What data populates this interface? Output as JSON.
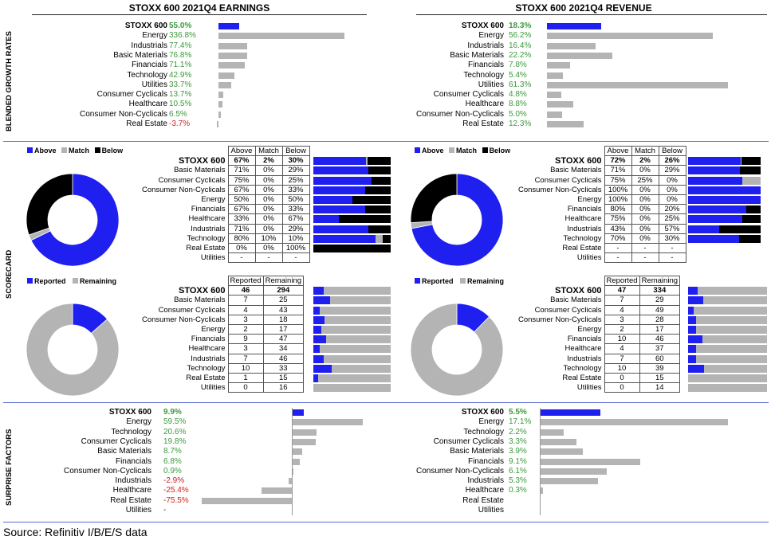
{
  "colors": {
    "blue": "#1f1ff0",
    "grey": "#b4b4b4",
    "black": "#000000",
    "pos": "#3c9a3c",
    "neg": "#d22020"
  },
  "headers": {
    "earnings": "STOXX 600 2021Q4 EARNINGS",
    "revenue": "STOXX 600 2021Q4 REVENUE"
  },
  "sections": {
    "growth": "BLENDED GROWTH RATES",
    "scorecard": "SCORECARD",
    "surprise": "SURPRISE FACTORS"
  },
  "legends": {
    "above": "Above",
    "match": "Match",
    "below": "Below",
    "reported": "Reported",
    "remaining": "Remaining"
  },
  "table_headers": {
    "above": "Above",
    "match": "Match",
    "below": "Below",
    "reported": "Reported",
    "remaining": "Remaining"
  },
  "source": "Source: Refinitiv I/B/E/S data",
  "chart_data": [
    {
      "id": "earn_growth",
      "type": "bar",
      "title": "STOXX 600 2021Q4 EARNINGS",
      "subtitle": "BLENDED GROWTH RATES",
      "categories": [
        "STOXX 600",
        "Energy",
        "Industrials",
        "Basic Materials",
        "Financials",
        "Technology",
        "Utilities",
        "Consumer Cyclicals",
        "Healthcare",
        "Consumer Non-Cyclicals",
        "Real Estate"
      ],
      "values": [
        55.0,
        336.8,
        77.4,
        76.8,
        71.1,
        42.9,
        33.7,
        13.7,
        10.5,
        6.5,
        -3.7
      ],
      "labels": [
        "55.0%",
        "336.8%",
        "77.4%",
        "76.8%",
        "71.1%",
        "42.9%",
        "33.7%",
        "13.7%",
        "10.5%",
        "6.5%",
        "-3.7%"
      ]
    },
    {
      "id": "rev_growth",
      "type": "bar",
      "title": "STOXX 600 2021Q4 REVENUE",
      "subtitle": "BLENDED GROWTH RATES",
      "categories": [
        "STOXX 600",
        "Energy",
        "Industrials",
        "Basic Materials",
        "Financials",
        "Technology",
        "Utilities",
        "Consumer Cyclicals",
        "Healthcare",
        "Consumer Non-Cyclicals",
        "Real Estate"
      ],
      "values": [
        18.3,
        56.2,
        16.4,
        22.2,
        7.8,
        5.4,
        61.3,
        4.8,
        8.8,
        5.0,
        12.3
      ],
      "labels": [
        "18.3%",
        "56.2%",
        "16.4%",
        "22.2%",
        "7.8%",
        "5.4%",
        "61.3%",
        "4.8%",
        "8.8%",
        "5.0%",
        "12.3%"
      ]
    },
    {
      "id": "earn_score",
      "type": "table",
      "subtitle": "SCORECARD",
      "rows": [
        {
          "name": "STOXX 600",
          "above": "67%",
          "match": "2%",
          "below": "30%",
          "a": 67,
          "m": 2,
          "b": 30
        },
        {
          "name": "Basic Materials",
          "above": "71%",
          "match": "0%",
          "below": "29%",
          "a": 71,
          "m": 0,
          "b": 29
        },
        {
          "name": "Consumer Cyclicals",
          "above": "75%",
          "match": "0%",
          "below": "25%",
          "a": 75,
          "m": 0,
          "b": 25
        },
        {
          "name": "Consumer Non-Cyclicals",
          "above": "67%",
          "match": "0%",
          "below": "33%",
          "a": 67,
          "m": 0,
          "b": 33
        },
        {
          "name": "Energy",
          "above": "50%",
          "match": "0%",
          "below": "50%",
          "a": 50,
          "m": 0,
          "b": 50
        },
        {
          "name": "Financials",
          "above": "67%",
          "match": "0%",
          "below": "33%",
          "a": 67,
          "m": 0,
          "b": 33
        },
        {
          "name": "Healthcare",
          "above": "33%",
          "match": "0%",
          "below": "67%",
          "a": 33,
          "m": 0,
          "b": 67
        },
        {
          "name": "Industrials",
          "above": "71%",
          "match": "0%",
          "below": "29%",
          "a": 71,
          "m": 0,
          "b": 29
        },
        {
          "name": "Technology",
          "above": "80%",
          "match": "10%",
          "below": "10%",
          "a": 80,
          "m": 10,
          "b": 10
        },
        {
          "name": "Real Estate",
          "above": "0%",
          "match": "0%",
          "below": "100%",
          "a": 0,
          "m": 0,
          "b": 100
        },
        {
          "name": "Utilities",
          "above": "-",
          "match": "-",
          "below": "-",
          "a": 0,
          "m": 0,
          "b": 0
        }
      ],
      "donut": {
        "above": 67,
        "match": 2,
        "below": 30
      }
    },
    {
      "id": "rev_score",
      "type": "table",
      "subtitle": "SCORECARD",
      "rows": [
        {
          "name": "STOXX 600",
          "above": "72%",
          "match": "2%",
          "below": "26%",
          "a": 72,
          "m": 2,
          "b": 26
        },
        {
          "name": "Basic Materials",
          "above": "71%",
          "match": "0%",
          "below": "29%",
          "a": 71,
          "m": 0,
          "b": 29
        },
        {
          "name": "Consumer Cyclicals",
          "above": "75%",
          "match": "25%",
          "below": "0%",
          "a": 75,
          "m": 25,
          "b": 0
        },
        {
          "name": "Consumer Non-Cyclicals",
          "above": "100%",
          "match": "0%",
          "below": "0%",
          "a": 100,
          "m": 0,
          "b": 0
        },
        {
          "name": "Energy",
          "above": "100%",
          "match": "0%",
          "below": "0%",
          "a": 100,
          "m": 0,
          "b": 0
        },
        {
          "name": "Financials",
          "above": "80%",
          "match": "0%",
          "below": "20%",
          "a": 80,
          "m": 0,
          "b": 20
        },
        {
          "name": "Healthcare",
          "above": "75%",
          "match": "0%",
          "below": "25%",
          "a": 75,
          "m": 0,
          "b": 25
        },
        {
          "name": "Industrials",
          "above": "43%",
          "match": "0%",
          "below": "57%",
          "a": 43,
          "m": 0,
          "b": 57
        },
        {
          "name": "Technology",
          "above": "70%",
          "match": "0%",
          "below": "30%",
          "a": 70,
          "m": 0,
          "b": 30
        },
        {
          "name": "Real Estate",
          "above": "-",
          "match": "-",
          "below": "-",
          "a": 0,
          "m": 0,
          "b": 0
        },
        {
          "name": "Utilities",
          "above": "-",
          "match": "-",
          "below": "-",
          "a": 0,
          "m": 0,
          "b": 0
        }
      ],
      "donut": {
        "above": 72,
        "match": 2,
        "below": 26
      }
    },
    {
      "id": "earn_rep",
      "type": "table",
      "subtitle": "SCORECARD",
      "rows": [
        {
          "name": "STOXX 600",
          "reported": "46",
          "remaining": "294",
          "r": 46,
          "q": 294
        },
        {
          "name": "Basic Materials",
          "reported": "7",
          "remaining": "25",
          "r": 7,
          "q": 25
        },
        {
          "name": "Consumer Cyclicals",
          "reported": "4",
          "remaining": "43",
          "r": 4,
          "q": 43
        },
        {
          "name": "Consumer Non-Cyclicals",
          "reported": "3",
          "remaining": "18",
          "r": 3,
          "q": 18
        },
        {
          "name": "Energy",
          "reported": "2",
          "remaining": "17",
          "r": 2,
          "q": 17
        },
        {
          "name": "Financials",
          "reported": "9",
          "remaining": "47",
          "r": 9,
          "q": 47
        },
        {
          "name": "Healthcare",
          "reported": "3",
          "remaining": "34",
          "r": 3,
          "q": 34
        },
        {
          "name": "Industrials",
          "reported": "7",
          "remaining": "46",
          "r": 7,
          "q": 46
        },
        {
          "name": "Technology",
          "reported": "10",
          "remaining": "33",
          "r": 10,
          "q": 33
        },
        {
          "name": "Real Estate",
          "reported": "1",
          "remaining": "15",
          "r": 1,
          "q": 15
        },
        {
          "name": "Utilities",
          "reported": "0",
          "remaining": "16",
          "r": 0,
          "q": 16
        }
      ]
    },
    {
      "id": "rev_rep",
      "type": "table",
      "subtitle": "SCORECARD",
      "rows": [
        {
          "name": "STOXX 600",
          "reported": "47",
          "remaining": "334",
          "r": 47,
          "q": 334
        },
        {
          "name": "Basic Materials",
          "reported": "7",
          "remaining": "29",
          "r": 7,
          "q": 29
        },
        {
          "name": "Consumer Cyclicals",
          "reported": "4",
          "remaining": "49",
          "r": 4,
          "q": 49
        },
        {
          "name": "Consumer Non-Cyclicals",
          "reported": "3",
          "remaining": "28",
          "r": 3,
          "q": 28
        },
        {
          "name": "Energy",
          "reported": "2",
          "remaining": "17",
          "r": 2,
          "q": 17
        },
        {
          "name": "Financials",
          "reported": "10",
          "remaining": "46",
          "r": 10,
          "q": 46
        },
        {
          "name": "Healthcare",
          "reported": "4",
          "remaining": "37",
          "r": 4,
          "q": 37
        },
        {
          "name": "Industrials",
          "reported": "7",
          "remaining": "60",
          "r": 7,
          "q": 60
        },
        {
          "name": "Technology",
          "reported": "10",
          "remaining": "39",
          "r": 10,
          "q": 39
        },
        {
          "name": "Real Estate",
          "reported": "0",
          "remaining": "15",
          "r": 0,
          "q": 15
        },
        {
          "name": "Utilities",
          "reported": "0",
          "remaining": "14",
          "r": 0,
          "q": 14
        }
      ]
    },
    {
      "id": "earn_surp",
      "type": "bar",
      "subtitle": "SURPRISE FACTORS",
      "categories": [
        "STOXX 600",
        "Energy",
        "Technology",
        "Consumer Cyclicals",
        "Basic Materials",
        "Financials",
        "Consumer Non-Cyclicals",
        "Industrials",
        "Healthcare",
        "Real Estate",
        "Utilities"
      ],
      "values": [
        9.9,
        59.5,
        20.6,
        19.8,
        8.7,
        6.8,
        0.9,
        -2.9,
        -25.4,
        -75.5,
        null
      ],
      "labels": [
        "9.9%",
        "59.5%",
        "20.6%",
        "19.8%",
        "8.7%",
        "6.8%",
        "0.9%",
        "-2.9%",
        "-25.4%",
        "-75.5%",
        "-"
      ]
    },
    {
      "id": "rev_surp",
      "type": "bar",
      "subtitle": "SURPRISE FACTORS",
      "categories": [
        "STOXX 600",
        "Energy",
        "Technology",
        "Consumer Cyclicals",
        "Basic Materials",
        "Financials",
        "Consumer Non-Cyclicals",
        "Industrials",
        "Healthcare",
        "Real Estate",
        "Utilities"
      ],
      "values": [
        5.5,
        17.1,
        2.2,
        3.3,
        3.9,
        9.1,
        6.1,
        5.3,
        0.3,
        null,
        null
      ],
      "labels": [
        "5.5%",
        "17.1%",
        "2.2%",
        "3.3%",
        "3.9%",
        "9.1%",
        "6.1%",
        "5.3%",
        "0.3%",
        "",
        ""
      ]
    }
  ]
}
